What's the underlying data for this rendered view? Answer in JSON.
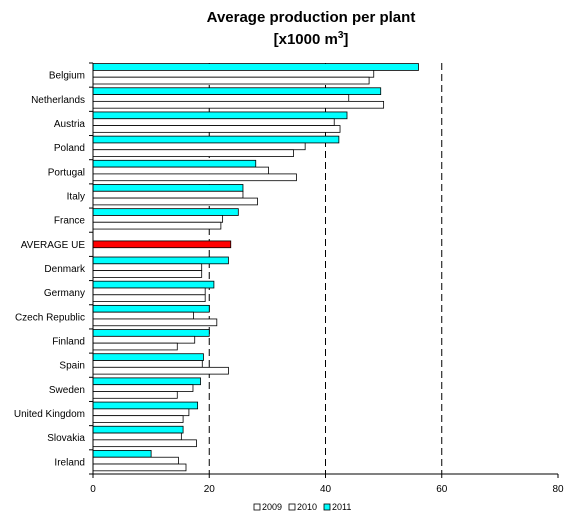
{
  "chart_data": {
    "type": "bar",
    "orientation": "horizontal",
    "title": "Average production per plant",
    "subtitle_parts": [
      "[x1000 m",
      "3",
      "]"
    ],
    "categories": [
      "Belgium",
      "Netherlands",
      "Austria",
      "Poland",
      "Portugal",
      "Italy",
      "France",
      "AVERAGE UE",
      "Denmark",
      "Germany",
      "Czech Republic",
      "Finland",
      "Spain",
      "Sweden",
      "United Kingdom",
      "Slovakia",
      "Ireland"
    ],
    "series": [
      {
        "name": "2009",
        "color": "#ffffff",
        "values": [
          47.5,
          50,
          42.5,
          34.5,
          35,
          28.3,
          22,
          null,
          18.7,
          19.3,
          21.3,
          14.5,
          23.3,
          14.5,
          15.5,
          17.8,
          16
        ]
      },
      {
        "name": "2010",
        "color": "#ffffff",
        "values": [
          48.3,
          44,
          41.5,
          36.5,
          30.2,
          25.8,
          22.3,
          null,
          18.7,
          19.3,
          17.3,
          17.5,
          18.8,
          17.2,
          16.5,
          15.2,
          14.7
        ]
      },
      {
        "name": "2011",
        "color": "#00ffff",
        "values": [
          56,
          49.5,
          43.7,
          42.3,
          28,
          25.8,
          25,
          null,
          23.3,
          20.8,
          20,
          20,
          19,
          18.5,
          18,
          15.5,
          10
        ]
      }
    ],
    "average": {
      "category": "AVERAGE UE",
      "value": 23.7,
      "color": "#ff0000"
    },
    "xlim": [
      0,
      80
    ],
    "xticks": [
      0,
      20,
      40,
      60,
      80
    ],
    "gridlines": "dashed vertical at 20, 40, 60",
    "legend_position": "bottom",
    "xlabel": "",
    "ylabel": ""
  }
}
